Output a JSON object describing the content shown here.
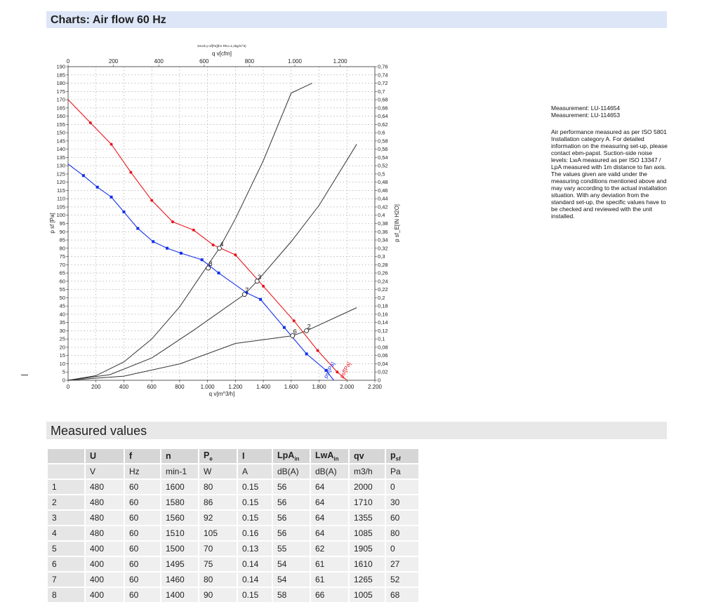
{
  "sections": {
    "charts_title": "Charts: Air flow 60 Hz",
    "measured_title": "Measured values"
  },
  "side_notes": {
    "measurement_1": "Measurement: LU-114654",
    "measurement_2": "Measurement: LU-114653",
    "description": "Air performance measured as per ISO 5801 Installation category A. For detailed information on the measuring set-up, please contact ebm-papst. Suction-side noise levels: LwA measured as per ISO 13347 / LpA measured with 1m distance to fan axis. The values given are valid under the measuring conditions mentioned above and may vary according to the actual installation situation. With any deviation from the standard set-up, the specific values have to be checked and reviewed with the unit installed."
  },
  "chart_data": {
    "type": "line",
    "small_title": "Druck p sf[Pa](for Rho=1,2kg/m^3)",
    "xlabel": "q v[m^3/h]",
    "xlabel_top": "q v[cfm]",
    "ylabel": "p sf [Pa]",
    "ylabel_right": "p sf_E[IN H2O]",
    "xlim": [
      0,
      2200
    ],
    "ylim": [
      0,
      190
    ],
    "x_ticks": [
      0,
      200,
      400,
      600,
      800,
      1000,
      1200,
      1400,
      1600,
      1800,
      2000,
      2200
    ],
    "x_tick_labels": [
      "0",
      "200",
      "400",
      "600",
      "800",
      "1.000",
      "1.200",
      "1.400",
      "1.600",
      "1.800",
      "2.000",
      "2.200"
    ],
    "x_top_ticks": [
      0,
      200,
      400,
      600,
      800,
      1000,
      1200
    ],
    "x_top_tick_labels": [
      "0",
      "200",
      "400",
      "600",
      "800",
      "1.000",
      "1.200"
    ],
    "y_ticks": [
      0,
      5,
      10,
      15,
      20,
      25,
      30,
      35,
      40,
      45,
      50,
      55,
      60,
      65,
      70,
      75,
      80,
      85,
      90,
      95,
      100,
      105,
      110,
      115,
      120,
      125,
      130,
      135,
      140,
      145,
      150,
      155,
      160,
      165,
      170,
      175,
      180,
      185,
      190
    ],
    "y_right_ticks": [
      0,
      0.02,
      0.04,
      0.06,
      0.08,
      0.1,
      0.12,
      0.14,
      0.16,
      0.18,
      0.2,
      0.22,
      0.24,
      0.26,
      0.28,
      0.3,
      0.32,
      0.34,
      0.36,
      0.38,
      0.4,
      0.42,
      0.44,
      0.46,
      0.48,
      0.5,
      0.52,
      0.54,
      0.56,
      0.58,
      0.6,
      0.62,
      0.64,
      0.66,
      0.68,
      0.7,
      0.72,
      0.74,
      0.76
    ],
    "y_right_tick_labels": [
      "0",
      "0,02",
      "0,04",
      "0,06",
      "0,08",
      "0,1",
      "0,12",
      "0,14",
      "0,16",
      "0,18",
      "0,2",
      "0,22",
      "0,24",
      "0,26",
      "0,28",
      "0,3",
      "0,32",
      "0,34",
      "0,36",
      "0,38",
      "0,4",
      "0,42",
      "0,44",
      "0,46",
      "0,48",
      "0,5",
      "0,52",
      "0,54",
      "0,56",
      "0,58",
      "0,6",
      "0,62",
      "0,64",
      "0,66",
      "0,68",
      "0,7",
      "0,72",
      "0,74",
      "0,76"
    ],
    "grid": true,
    "series": [
      {
        "name": "psf[Pa]",
        "color": "#e8141c",
        "x": [
          0,
          160,
          310,
          450,
          600,
          750,
          900,
          1040,
          1200,
          1400,
          1620,
          1790,
          1930,
          2000
        ],
        "y": [
          170,
          156,
          143,
          126,
          109,
          96,
          91,
          82,
          76,
          57,
          36,
          18,
          5,
          0
        ]
      },
      {
        "name": "psf[Pa]",
        "color": "#1430e8",
        "x": [
          0,
          110,
          210,
          310,
          400,
          500,
          610,
          710,
          810,
          960,
          1080,
          1280,
          1380,
          1550,
          1710,
          1850,
          1905
        ],
        "y": [
          131,
          124,
          117,
          111,
          102,
          92,
          84,
          80,
          77,
          73,
          65,
          53,
          49,
          32,
          16,
          6,
          0
        ]
      }
    ],
    "system_curves": [
      {
        "x": [
          0,
          200,
          400,
          600,
          800,
          1000,
          1085,
          1200,
          1400,
          1600,
          1750
        ],
        "y": [
          0,
          2.8,
          11.1,
          25,
          44.5,
          69.5,
          80,
          97.9,
          133,
          174,
          180
        ]
      },
      {
        "x": [
          0,
          300,
          600,
          900,
          1265,
          1355,
          1600,
          1800,
          2070
        ],
        "y": [
          0,
          3.4,
          13.5,
          30.3,
          52,
          60,
          84,
          106,
          143
        ]
      },
      {
        "x": [
          0,
          400,
          800,
          1200,
          1610,
          1710,
          2070
        ],
        "y": [
          0,
          2.5,
          9.9,
          22.3,
          27,
          30,
          44
        ]
      }
    ],
    "operating_points": [
      {
        "label": "2",
        "x": 1710,
        "y": 30
      },
      {
        "label": "3",
        "x": 1355,
        "y": 60
      },
      {
        "label": "4",
        "x": 1085,
        "y": 80
      },
      {
        "label": "6",
        "x": 1610,
        "y": 27
      },
      {
        "label": "7",
        "x": 1265,
        "y": 52
      },
      {
        "label": "8",
        "x": 1005,
        "y": 68
      }
    ]
  },
  "table": {
    "headers": [
      {
        "main": "",
        "sub": ""
      },
      {
        "main": "U",
        "sub": ""
      },
      {
        "main": "f",
        "sub": ""
      },
      {
        "main": "n",
        "sub": ""
      },
      {
        "main": "P",
        "sub": "e"
      },
      {
        "main": "I",
        "sub": ""
      },
      {
        "main": "LpA",
        "sub": "in"
      },
      {
        "main": "LwA",
        "sub": "in"
      },
      {
        "main": "qv",
        "sub": ""
      },
      {
        "main": "p",
        "sub": "sf"
      }
    ],
    "units": [
      "",
      "V",
      "Hz",
      "min-1",
      "W",
      "A",
      "dB(A)",
      "dB(A)",
      "m3/h",
      "Pa"
    ],
    "rows": [
      [
        "1",
        "480",
        "60",
        "1600",
        "80",
        "0.15",
        "56",
        "64",
        "2000",
        "0"
      ],
      [
        "2",
        "480",
        "60",
        "1580",
        "86",
        "0.15",
        "56",
        "64",
        "1710",
        "30"
      ],
      [
        "3",
        "480",
        "60",
        "1560",
        "92",
        "0.15",
        "56",
        "64",
        "1355",
        "60"
      ],
      [
        "4",
        "480",
        "60",
        "1510",
        "105",
        "0.16",
        "56",
        "64",
        "1085",
        "80"
      ],
      [
        "5",
        "400",
        "60",
        "1500",
        "70",
        "0.13",
        "55",
        "62",
        "1905",
        "0"
      ],
      [
        "6",
        "400",
        "60",
        "1495",
        "75",
        "0.14",
        "54",
        "61",
        "1610",
        "27"
      ],
      [
        "7",
        "400",
        "60",
        "1460",
        "80",
        "0.14",
        "54",
        "61",
        "1265",
        "52"
      ],
      [
        "8",
        "400",
        "60",
        "1400",
        "90",
        "0.15",
        "58",
        "66",
        "1005",
        "68"
      ]
    ]
  }
}
